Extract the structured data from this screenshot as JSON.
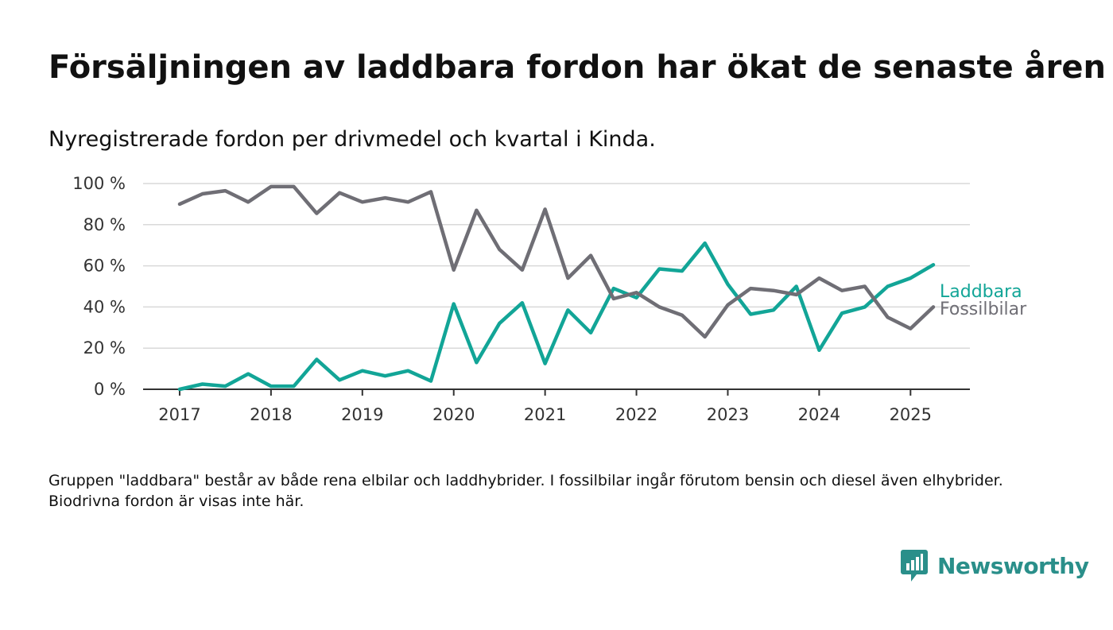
{
  "title": "Försäljningen av laddbara fordon har ökat de senaste åren",
  "subtitle": "Nyregistrerade fordon per drivmedel och kvartal i Kinda.",
  "footnote": "Gruppen \"laddbara\" består av både rena elbilar och laddhybrider. I fossilbilar ingår förutom bensin och diesel även elhybrider. Biodrivna fordon är visas inte här.",
  "brand": {
    "name": "Newsworthy",
    "logo_icon": "bar-chart-badge-icon",
    "color": "#2a8f8a"
  },
  "chart_data": {
    "type": "line",
    "x_start": 2017.0,
    "x_step": 0.25,
    "x_ticks": [
      2017,
      2018,
      2019,
      2020,
      2021,
      2022,
      2023,
      2024,
      2025
    ],
    "y_ticks": [
      0,
      20,
      40,
      60,
      80,
      100
    ],
    "y_tick_labels": [
      "0 %",
      "20 %",
      "40 %",
      "60 %",
      "80 %",
      "100 %"
    ],
    "ylim": [
      0,
      100
    ],
    "xlim": [
      2016.6,
      2025.65
    ],
    "grid": true,
    "series": [
      {
        "name": "Laddbara",
        "color": "#12a597",
        "values": [
          0,
          2.5,
          1.5,
          7.5,
          1.5,
          1.5,
          14.5,
          4.5,
          9,
          6.5,
          9,
          4,
          41.5,
          13,
          32,
          42,
          12.5,
          38.5,
          27.5,
          49,
          44.5,
          58.5,
          57.5,
          71,
          51,
          36.5,
          38.5,
          50,
          19,
          37,
          40,
          50,
          54,
          60.5
        ]
      },
      {
        "name": "Fossilbilar",
        "color": "#6f6e75",
        "values": [
          90,
          95,
          96.5,
          91,
          98.5,
          98.5,
          85.5,
          95.5,
          91,
          93,
          91,
          96,
          58,
          87,
          68,
          58,
          87.5,
          54,
          65,
          44,
          47,
          40,
          36,
          25.5,
          41,
          49,
          48,
          46,
          54,
          48,
          50,
          35,
          29.5,
          40
        ]
      }
    ]
  }
}
